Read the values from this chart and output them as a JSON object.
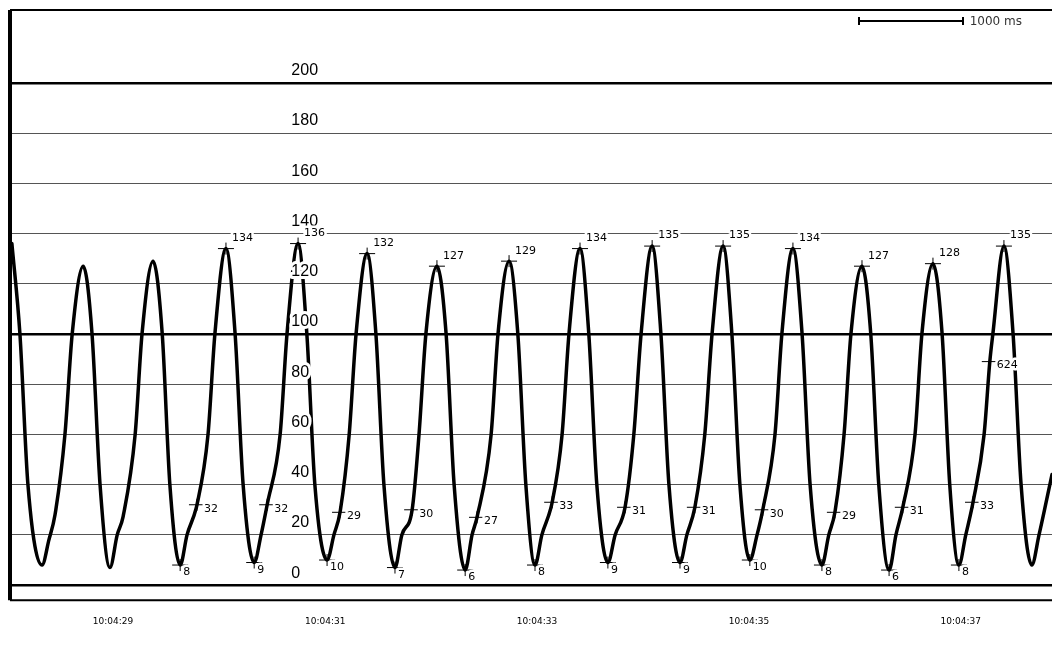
{
  "chart_data": {
    "type": "line",
    "x": [
      10.074457,
      10.074478,
      10.074499,
      10.074536,
      10.074554,
      10.07457,
      10.074596,
      10.074615,
      10.074644,
      10.074667,
      10.074688,
      10.074714,
      10.074733,
      10.074748,
      10.07478,
      10.074798,
      10.074827,
      10.074851,
      10.074871,
      10.074898,
      10.074916,
      10.074942,
      10.074971,
      10.074989,
      10.075018,
      10.075042,
      10.075063,
      10.075092,
      10.07511,
      10.075126,
      10.07516,
      10.075178,
      10.075207,
      10.07523,
      10.075251,
      10.075283,
      10.075301,
      10.075317,
      10.075341,
      10.075359,
      10.075388,
      10.075411,
      10.075432,
      10.075461,
      10.075479,
      10.075506,
      10.075524,
      10.075542,
      10.075571,
      10.075595,
      10.075616,
      10.075645,
      10.075663,
      10.075676,
      10.075713,
      10.075731,
      10.07576,
      10.075783,
      10.075804,
      10.075828,
      10.075846,
      10.075873,
      10.075899,
      10.075917,
      10.075946,
      10.075969,
      10.07599,
      10.076019,
      10.076038,
      10.076064,
      10.076087,
      10.076106,
      10.076135,
      10.076158,
      10.076179,
      10.076208,
      10.076226,
      10.076247,
      10.076273,
      10.076292,
      10.076321,
      10.076344,
      10.076365,
      10.076391,
      10.07641,
      10.076425,
      10.076457,
      10.076475,
      10.076504,
      10.076528,
      10.076549,
      10.07658,
      10.076598,
      10.076614,
      10.076638,
      10.076656,
      10.076685,
      10.076708,
      10.076729,
      10.076756,
      10.076774,
      10.076792,
      10.076824,
      10.076842,
      10.076871,
      10.076895,
      10.076915,
      10.076939,
      10.076957,
      10.076976,
      10.077005,
      10.07702,
      10.077028,
      10.077057,
      10.077081,
      10.077102,
      10.07713,
      10.077149,
      10.077183
    ],
    "series": [
      {
        "color": "#000000",
        "values": [
          136,
          100,
          40,
          8,
          18,
          28,
          60,
          100,
          127,
          100,
          40,
          7,
          20,
          27,
          60,
          100,
          129,
          100,
          40,
          8,
          20,
          32,
          60,
          100,
          134,
          100,
          40,
          9,
          20,
          32,
          60,
          100,
          136,
          100,
          40,
          10,
          20,
          29,
          60,
          100,
          132,
          100,
          40,
          7,
          20,
          30,
          60,
          100,
          127,
          100,
          40,
          6,
          20,
          27,
          60,
          100,
          129,
          100,
          40,
          8,
          20,
          33,
          60,
          100,
          134,
          100,
          40,
          9,
          20,
          31,
          60,
          100,
          135,
          100,
          40,
          9,
          20,
          31,
          60,
          100,
          135,
          100,
          40,
          10,
          20,
          30,
          60,
          100,
          134,
          100,
          40,
          8,
          20,
          29,
          60,
          100,
          127,
          100,
          40,
          6,
          20,
          31,
          60,
          100,
          128,
          100,
          40,
          8,
          20,
          33,
          60,
          89,
          100,
          135,
          100,
          40,
          8,
          20,
          44
        ]
      }
    ],
    "xlim": [
      10.074452,
      10.077183
    ],
    "xticks": [
      {
        "value": 10.074722,
        "label": "10:04:29"
      },
      {
        "value": 10.075278,
        "label": "10:04:31"
      },
      {
        "value": 10.075833,
        "label": "10:04:33"
      },
      {
        "value": 10.076389,
        "label": "10:04:35"
      },
      {
        "value": 10.076944,
        "label": "10:04:37"
      }
    ],
    "ylim": [
      -6,
      229
    ],
    "yticks": [
      0,
      20,
      40,
      60,
      80,
      100,
      120,
      140,
      160,
      180,
      200
    ],
    "grid": "y",
    "legend": false,
    "marker": "none",
    "line_style": "solid",
    "annotations": [
      "1000 ms",
      {
        "text": "134",
        "x": 10.075018,
        "y": 134
      },
      {
        "text": "136",
        "x": 10.075207,
        "y": 136
      },
      {
        "text": "132",
        "x": 10.075388,
        "y": 132
      },
      {
        "text": "127",
        "x": 10.075571,
        "y": 127
      },
      {
        "text": "129",
        "x": 10.07576,
        "y": 129
      },
      {
        "text": "134",
        "x": 10.075946,
        "y": 134
      },
      {
        "text": "135",
        "x": 10.076135,
        "y": 135
      },
      {
        "text": "135",
        "x": 10.076321,
        "y": 135
      },
      {
        "text": "134",
        "x": 10.076504,
        "y": 134
      },
      {
        "text": "127",
        "x": 10.076685,
        "y": 127
      },
      {
        "text": "128",
        "x": 10.076871,
        "y": 128
      },
      {
        "text": "135",
        "x": 10.077057,
        "y": 135
      },
      {
        "text": "8",
        "x": 10.074898,
        "y": 8
      },
      {
        "text": "9",
        "x": 10.075092,
        "y": 9
      },
      {
        "text": "10",
        "x": 10.075283,
        "y": 10
      },
      {
        "text": "7",
        "x": 10.075461,
        "y": 7
      },
      {
        "text": "6",
        "x": 10.075645,
        "y": 6
      },
      {
        "text": "8",
        "x": 10.075828,
        "y": 8
      },
      {
        "text": "9",
        "x": 10.076019,
        "y": 9
      },
      {
        "text": "9",
        "x": 10.076208,
        "y": 9
      },
      {
        "text": "10",
        "x": 10.076391,
        "y": 10
      },
      {
        "text": "8",
        "x": 10.07658,
        "y": 8
      },
      {
        "text": "6",
        "x": 10.076756,
        "y": 6
      },
      {
        "text": "8",
        "x": 10.076939,
        "y": 8
      },
      {
        "text": "32",
        "x": 10.074942,
        "y": 32
      },
      {
        "text": "32",
        "x": 10.075126,
        "y": 32
      },
      {
        "text": "29",
        "x": 10.075317,
        "y": 29
      },
      {
        "text": "30",
        "x": 10.075506,
        "y": 30
      },
      {
        "text": "27",
        "x": 10.075676,
        "y": 27
      },
      {
        "text": "33",
        "x": 10.075873,
        "y": 33
      },
      {
        "text": "31",
        "x": 10.076064,
        "y": 31
      },
      {
        "text": "31",
        "x": 10.076247,
        "y": 31
      },
      {
        "text": "30",
        "x": 10.076425,
        "y": 30
      },
      {
        "text": "29",
        "x": 10.076614,
        "y": 29
      },
      {
        "text": "31",
        "x": 10.076792,
        "y": 31
      },
      {
        "text": "33",
        "x": 10.076976,
        "y": 33
      },
      {
        "text": "624",
        "x": 10.07702,
        "y": 89
      }
    ]
  }
}
